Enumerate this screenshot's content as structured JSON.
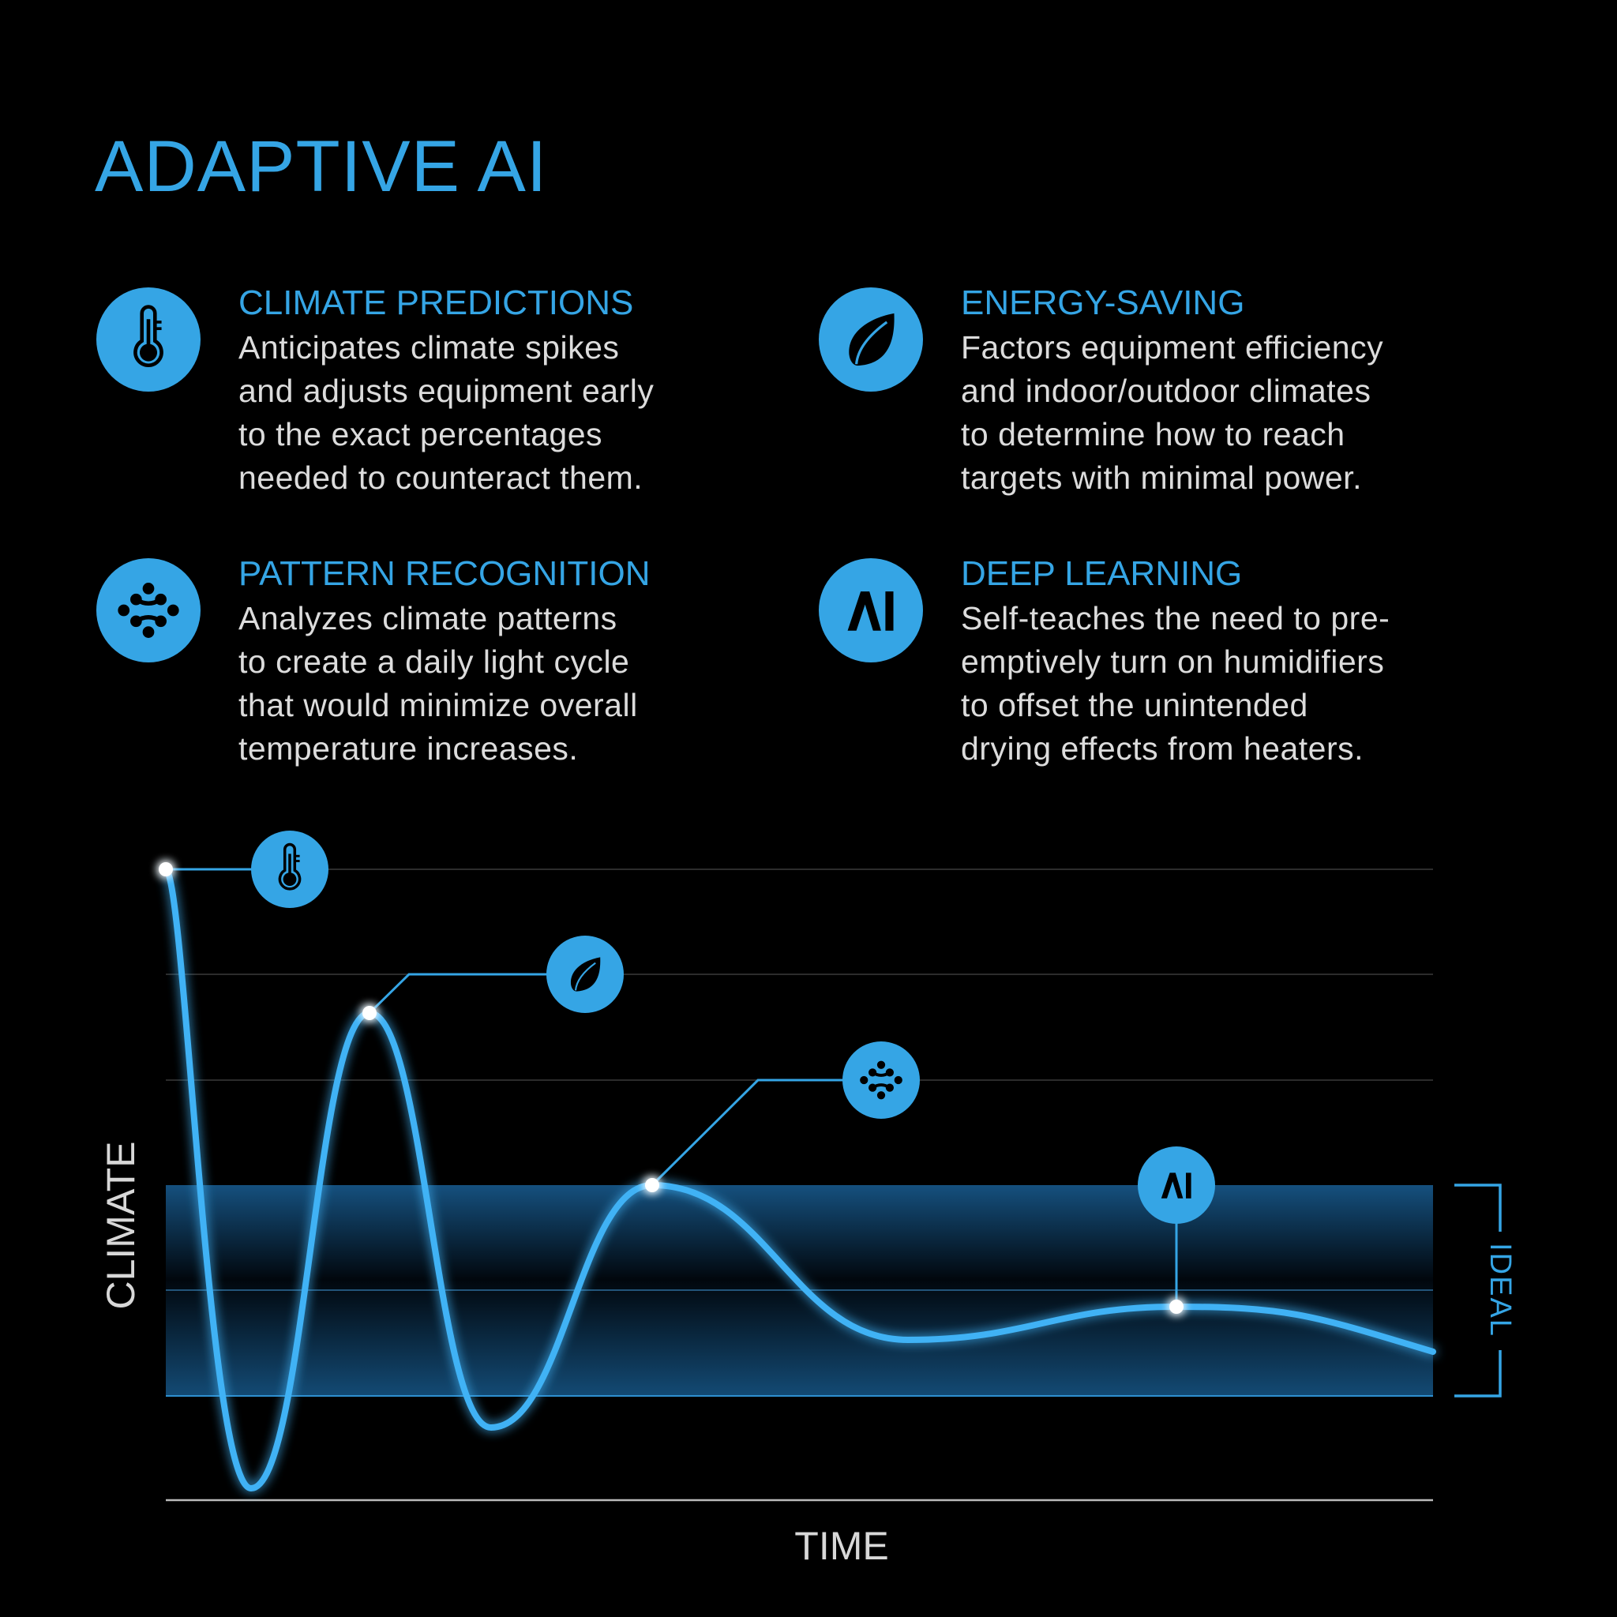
{
  "title": "ADAPTIVE AI",
  "accent_color": "#35a5e5",
  "features": [
    {
      "icon": "thermometer-icon",
      "heading": "CLIMATE PREDICTIONS",
      "lines": [
        "Anticipates climate spikes",
        "and adjusts equipment early",
        "to the exact percentages",
        "needed to counteract them."
      ]
    },
    {
      "icon": "leaf-icon",
      "heading": "ENERGY-SAVING",
      "lines": [
        "Factors equipment efficiency",
        "and indoor/outdoor climates",
        "to determine how to reach",
        "targets with minimal power."
      ]
    },
    {
      "icon": "pattern-icon",
      "heading": "PATTERN RECOGNITION",
      "lines": [
        "Analyzes climate patterns",
        "to create a daily light cycle",
        "that would minimize overall",
        "temperature increases."
      ]
    },
    {
      "icon": "ai-icon",
      "heading": "DEEP LEARNING",
      "lines": [
        "Self-teaches the need to pre-",
        "emptively turn on humidifiers",
        "to offset the unintended",
        "drying effects from heaters."
      ]
    }
  ],
  "chart": {
    "ylabel": "CLIMATE",
    "xlabel": "TIME",
    "band_label": "IDEAL",
    "ai_glyph": "AI",
    "markers": [
      "thermometer-icon",
      "leaf-icon",
      "pattern-icon",
      "ai-icon"
    ]
  }
}
